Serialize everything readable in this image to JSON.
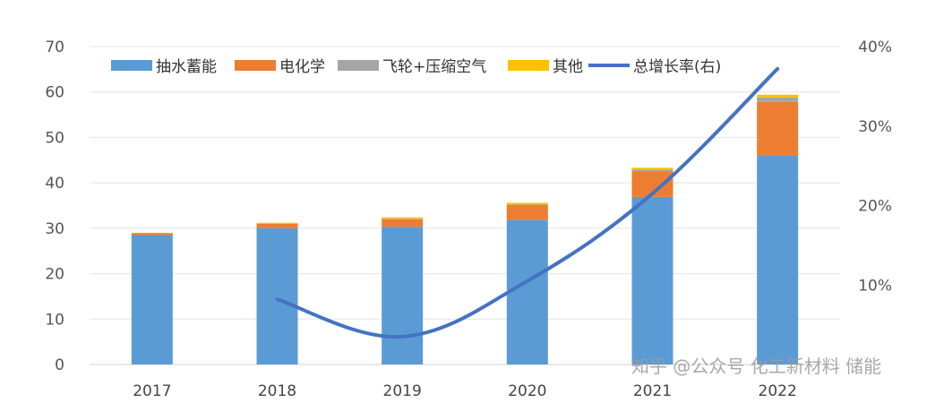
{
  "chart_data": {
    "type": "bar",
    "stacked": true,
    "categories": [
      "2017",
      "2018",
      "2019",
      "2020",
      "2021",
      "2022"
    ],
    "series": [
      {
        "name": "抽水蓄能",
        "values": [
          28.5,
          30.0,
          30.3,
          31.8,
          36.9,
          46.1
        ],
        "color": "#5b9bd5"
      },
      {
        "name": "电化学",
        "values": [
          0.4,
          1.0,
          1.7,
          3.3,
          5.6,
          11.7
        ],
        "color": "#ed7d31"
      },
      {
        "name": "飞轮+压缩空气",
        "values": [
          0.0,
          0.0,
          0.1,
          0.1,
          0.4,
          1.0
        ],
        "color": "#a5a5a5"
      },
      {
        "name": "其他",
        "values": [
          0.1,
          0.2,
          0.3,
          0.4,
          0.4,
          0.6
        ],
        "color": "#ffc000"
      }
    ],
    "line_series": {
      "name": "总增长率(右)",
      "axis": "right",
      "color": "#4472c4",
      "x": [
        "2018",
        "2019",
        "2020",
        "2021",
        "2022"
      ],
      "values": [
        8.2,
        3.5,
        10.5,
        21.5,
        37.2
      ]
    },
    "y_left": {
      "min": 0,
      "max": 70,
      "ticks": [
        "0",
        "10",
        "20",
        "30",
        "40",
        "50",
        "60",
        "70"
      ]
    },
    "y_right": {
      "min": 0,
      "max": 40,
      "ticks": [
        "10%",
        "20%",
        "30%",
        "40%"
      ]
    },
    "grid": true,
    "legend_position": "top-left"
  },
  "watermark": {
    "text": "知乎 @公众号 化工新材料 储能",
    "icon": "zhihu-logo-icon"
  }
}
